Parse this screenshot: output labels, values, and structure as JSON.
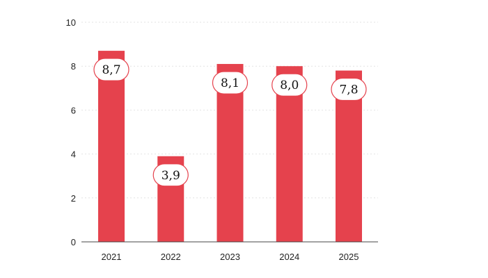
{
  "chart_data": {
    "type": "bar",
    "categories": [
      "2021",
      "2022",
      "2023",
      "2024",
      "2025"
    ],
    "values": [
      8.7,
      3.9,
      8.1,
      8.0,
      7.8
    ],
    "data_labels": [
      "8,7",
      "3,9",
      "8,1",
      "8,0",
      "7,8"
    ],
    "title": "",
    "xlabel": "",
    "ylabel": "",
    "ylim": [
      0,
      10
    ],
    "yticks": [
      0,
      2,
      4,
      6,
      8,
      10
    ],
    "grid": "horizontal dotted",
    "legend": "none",
    "colors": {
      "bar": "#e5424d",
      "label_border": "#e5424d",
      "label_fill": "#ffffff",
      "grid": "#e2e2e2",
      "axis": "#444444"
    }
  }
}
